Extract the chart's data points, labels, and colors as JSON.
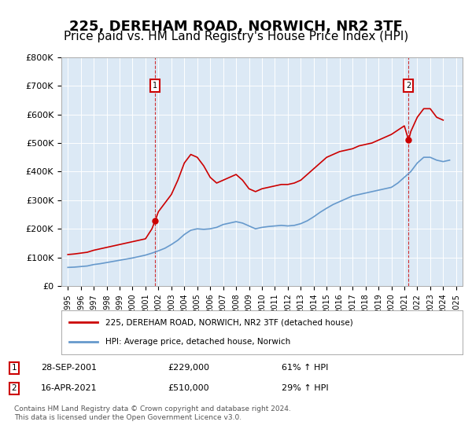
{
  "title": "225, DEREHAM ROAD, NORWICH, NR2 3TF",
  "subtitle": "Price paid vs. HM Land Registry's House Price Index (HPI)",
  "title_fontsize": 13,
  "subtitle_fontsize": 11,
  "bg_color": "#dce9f5",
  "plot_bg_color": "#dce9f5",
  "fig_bg_color": "#ffffff",
  "ylim": [
    0,
    800000
  ],
  "yticks": [
    0,
    100000,
    200000,
    300000,
    400000,
    500000,
    600000,
    700000,
    800000
  ],
  "ytick_labels": [
    "£0",
    "£100K",
    "£200K",
    "£300K",
    "£400K",
    "£500K",
    "£600K",
    "£700K",
    "£800K"
  ],
  "red_label": "225, DEREHAM ROAD, NORWICH, NR2 3TF (detached house)",
  "blue_label": "HPI: Average price, detached house, Norwich",
  "red_color": "#cc0000",
  "blue_color": "#6699cc",
  "marker1_date_idx": 6.75,
  "marker1_label": "1",
  "marker1_price": 229000,
  "marker2_date_idx": 26.3,
  "marker2_label": "2",
  "marker2_price": 510000,
  "footnote1": "1   28-SEP-2001        £229,000        61% ↑ HPI",
  "footnote2": "2   16-APR-2021        £510,000        29% ↑ HPI",
  "footnote3": "Contains HM Land Registry data © Crown copyright and database right 2024.",
  "footnote4": "This data is licensed under the Open Government Licence v3.0.",
  "red_years": [
    1995.0,
    1995.5,
    1996.0,
    1996.5,
    1997.0,
    1997.5,
    1998.0,
    1998.5,
    1999.0,
    1999.5,
    2000.0,
    2000.5,
    2001.0,
    2001.5,
    2001.75,
    2002.0,
    2002.5,
    2003.0,
    2003.5,
    2004.0,
    2004.5,
    2005.0,
    2005.5,
    2006.0,
    2006.5,
    2007.0,
    2007.5,
    2008.0,
    2008.5,
    2009.0,
    2009.5,
    2010.0,
    2010.5,
    2011.0,
    2011.5,
    2012.0,
    2012.5,
    2013.0,
    2013.5,
    2014.0,
    2014.5,
    2015.0,
    2015.5,
    2016.0,
    2016.5,
    2017.0,
    2017.5,
    2018.0,
    2018.5,
    2019.0,
    2019.5,
    2020.0,
    2020.5,
    2021.0,
    2021.33,
    2021.5,
    2022.0,
    2022.5,
    2023.0,
    2023.5,
    2024.0
  ],
  "red_values": [
    110000,
    112000,
    115000,
    118000,
    125000,
    130000,
    135000,
    140000,
    145000,
    150000,
    155000,
    160000,
    165000,
    200000,
    229000,
    260000,
    290000,
    320000,
    370000,
    430000,
    460000,
    450000,
    420000,
    380000,
    360000,
    370000,
    380000,
    390000,
    370000,
    340000,
    330000,
    340000,
    345000,
    350000,
    355000,
    355000,
    360000,
    370000,
    390000,
    410000,
    430000,
    450000,
    460000,
    470000,
    475000,
    480000,
    490000,
    495000,
    500000,
    510000,
    520000,
    530000,
    545000,
    560000,
    510000,
    540000,
    590000,
    620000,
    620000,
    590000,
    580000
  ],
  "blue_years": [
    1995.0,
    1995.5,
    1996.0,
    1996.5,
    1997.0,
    1997.5,
    1998.0,
    1998.5,
    1999.0,
    1999.5,
    2000.0,
    2000.5,
    2001.0,
    2001.5,
    2002.0,
    2002.5,
    2003.0,
    2003.5,
    2004.0,
    2004.5,
    2005.0,
    2005.5,
    2006.0,
    2006.5,
    2007.0,
    2007.5,
    2008.0,
    2008.5,
    2009.0,
    2009.5,
    2010.0,
    2010.5,
    2011.0,
    2011.5,
    2012.0,
    2012.5,
    2013.0,
    2013.5,
    2014.0,
    2014.5,
    2015.0,
    2015.5,
    2016.0,
    2016.5,
    2017.0,
    2017.5,
    2018.0,
    2018.5,
    2019.0,
    2019.5,
    2020.0,
    2020.5,
    2021.0,
    2021.5,
    2022.0,
    2022.5,
    2023.0,
    2023.5,
    2024.0,
    2024.5
  ],
  "blue_values": [
    65000,
    66000,
    68000,
    70000,
    75000,
    78000,
    82000,
    86000,
    90000,
    94000,
    98000,
    103000,
    108000,
    115000,
    123000,
    132000,
    145000,
    160000,
    180000,
    195000,
    200000,
    198000,
    200000,
    205000,
    215000,
    220000,
    225000,
    220000,
    210000,
    200000,
    205000,
    208000,
    210000,
    212000,
    210000,
    212000,
    218000,
    228000,
    242000,
    258000,
    272000,
    285000,
    295000,
    305000,
    315000,
    320000,
    325000,
    330000,
    335000,
    340000,
    345000,
    360000,
    380000,
    400000,
    430000,
    450000,
    450000,
    440000,
    435000,
    440000
  ],
  "xlim_left": 1994.5,
  "xlim_right": 2025.5
}
